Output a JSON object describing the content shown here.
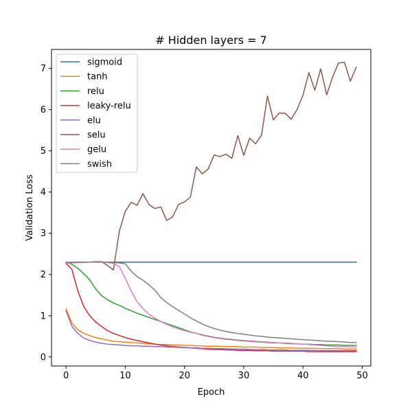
{
  "chart_data": {
    "type": "line",
    "title": "# Hidden layers = 7",
    "xlabel": "Epoch",
    "ylabel": "Validation Loss",
    "xlim": [
      -2.45,
      51.45
    ],
    "ylim": [
      -0.22,
      7.46
    ],
    "xticks": [
      0,
      10,
      20,
      30,
      40,
      50
    ],
    "yticks": [
      0,
      1,
      2,
      3,
      4,
      5,
      6,
      7
    ],
    "grid": false,
    "legend_position": "upper-left",
    "x": [
      0,
      1,
      2,
      3,
      4,
      5,
      6,
      7,
      8,
      9,
      10,
      11,
      12,
      13,
      14,
      15,
      16,
      17,
      18,
      19,
      20,
      21,
      22,
      23,
      24,
      25,
      26,
      27,
      28,
      29,
      30,
      31,
      32,
      33,
      34,
      35,
      36,
      37,
      38,
      39,
      40,
      41,
      42,
      43,
      44,
      45,
      46,
      47,
      48,
      49
    ],
    "series": [
      {
        "name": "sigmoid",
        "color": "#1f77b4",
        "values": [
          2.3,
          2.3,
          2.3,
          2.3,
          2.3,
          2.3,
          2.3,
          2.3,
          2.3,
          2.3,
          2.3,
          2.3,
          2.3,
          2.3,
          2.3,
          2.3,
          2.3,
          2.3,
          2.3,
          2.3,
          2.3,
          2.3,
          2.3,
          2.3,
          2.3,
          2.3,
          2.3,
          2.3,
          2.3,
          2.3,
          2.3,
          2.3,
          2.3,
          2.3,
          2.3,
          2.3,
          2.3,
          2.3,
          2.3,
          2.3,
          2.3,
          2.3,
          2.3,
          2.3,
          2.3,
          2.3,
          2.3,
          2.3,
          2.3,
          2.3
        ]
      },
      {
        "name": "tanh",
        "color": "#ff7f0e",
        "values": [
          1.17,
          0.82,
          0.66,
          0.57,
          0.52,
          0.47,
          0.44,
          0.41,
          0.38,
          0.37,
          0.36,
          0.35,
          0.34,
          0.33,
          0.32,
          0.31,
          0.3,
          0.3,
          0.29,
          0.29,
          0.28,
          0.28,
          0.27,
          0.27,
          0.26,
          0.26,
          0.26,
          0.25,
          0.25,
          0.25,
          0.24,
          0.24,
          0.24,
          0.23,
          0.23,
          0.23,
          0.22,
          0.22,
          0.22,
          0.21,
          0.21,
          0.21,
          0.21,
          0.2,
          0.2,
          0.2,
          0.2,
          0.19,
          0.19,
          0.19
        ]
      },
      {
        "name": "relu",
        "color": "#2ca02c",
        "values": [
          2.3,
          2.25,
          2.15,
          2.02,
          1.87,
          1.65,
          1.49,
          1.39,
          1.31,
          1.25,
          1.18,
          1.12,
          1.06,
          1.01,
          0.96,
          0.91,
          0.86,
          0.81,
          0.76,
          0.71,
          0.66,
          0.61,
          0.57,
          0.53,
          0.5,
          0.47,
          0.45,
          0.43,
          0.42,
          0.4,
          0.39,
          0.38,
          0.37,
          0.36,
          0.35,
          0.34,
          0.34,
          0.33,
          0.32,
          0.32,
          0.31,
          0.31,
          0.3,
          0.3,
          0.29,
          0.29,
          0.29,
          0.28,
          0.28,
          0.28
        ]
      },
      {
        "name": "leaky-relu",
        "color": "#d62728",
        "values": [
          2.27,
          2.12,
          1.6,
          1.22,
          1.0,
          0.85,
          0.74,
          0.64,
          0.57,
          0.52,
          0.47,
          0.43,
          0.4,
          0.37,
          0.34,
          0.31,
          0.29,
          0.27,
          0.25,
          0.24,
          0.23,
          0.22,
          0.21,
          0.2,
          0.19,
          0.18,
          0.18,
          0.17,
          0.17,
          0.16,
          0.16,
          0.16,
          0.15,
          0.15,
          0.15,
          0.14,
          0.14,
          0.14,
          0.14,
          0.14,
          0.14,
          0.13,
          0.13,
          0.13,
          0.13,
          0.13,
          0.13,
          0.13,
          0.13,
          0.13
        ]
      },
      {
        "name": "elu",
        "color": "#9467bd",
        "values": [
          1.12,
          0.74,
          0.57,
          0.46,
          0.4,
          0.36,
          0.33,
          0.31,
          0.3,
          0.29,
          0.28,
          0.27,
          0.27,
          0.26,
          0.26,
          0.25,
          0.25,
          0.24,
          0.24,
          0.23,
          0.23,
          0.22,
          0.22,
          0.21,
          0.21,
          0.2,
          0.2,
          0.2,
          0.19,
          0.19,
          0.19,
          0.18,
          0.18,
          0.18,
          0.17,
          0.17,
          0.17,
          0.17,
          0.16,
          0.16,
          0.16,
          0.16,
          0.16,
          0.15,
          0.15,
          0.15,
          0.15,
          0.15,
          0.15,
          0.15
        ]
      },
      {
        "name": "selu",
        "color": "#8c564b",
        "values": [
          2.27,
          2.29,
          2.29,
          2.3,
          2.3,
          2.31,
          2.31,
          2.22,
          2.11,
          3.05,
          3.53,
          3.75,
          3.68,
          3.96,
          3.7,
          3.6,
          3.64,
          3.31,
          3.4,
          3.7,
          3.76,
          3.88,
          4.61,
          4.44,
          4.56,
          4.9,
          4.86,
          4.92,
          4.82,
          5.37,
          4.89,
          5.31,
          5.17,
          5.38,
          6.33,
          5.75,
          5.92,
          5.91,
          5.77,
          6.0,
          6.35,
          6.9,
          6.47,
          6.99,
          6.36,
          6.79,
          7.13,
          7.15,
          6.69,
          7.03
        ]
      },
      {
        "name": "gelu",
        "color": "#e377c2",
        "values": [
          2.27,
          2.28,
          2.29,
          2.29,
          2.3,
          2.3,
          2.3,
          2.29,
          2.27,
          2.19,
          1.91,
          1.6,
          1.34,
          1.17,
          1.04,
          0.94,
          0.86,
          0.79,
          0.73,
          0.68,
          0.64,
          0.6,
          0.57,
          0.54,
          0.51,
          0.48,
          0.46,
          0.44,
          0.43,
          0.41,
          0.4,
          0.39,
          0.38,
          0.37,
          0.36,
          0.35,
          0.34,
          0.34,
          0.33,
          0.32,
          0.31,
          0.3,
          0.29,
          0.28,
          0.27,
          0.26,
          0.25,
          0.25,
          0.24,
          0.24
        ]
      },
      {
        "name": "swish",
        "color": "#7f7f7f",
        "values": [
          2.3,
          2.3,
          2.3,
          2.3,
          2.3,
          2.3,
          2.3,
          2.3,
          2.29,
          2.28,
          2.26,
          2.08,
          1.95,
          1.86,
          1.75,
          1.62,
          1.44,
          1.32,
          1.22,
          1.13,
          1.04,
          0.95,
          0.87,
          0.8,
          0.74,
          0.69,
          0.65,
          0.62,
          0.59,
          0.57,
          0.55,
          0.53,
          0.51,
          0.5,
          0.48,
          0.47,
          0.46,
          0.45,
          0.44,
          0.43,
          0.42,
          0.41,
          0.4,
          0.39,
          0.38,
          0.38,
          0.37,
          0.36,
          0.35,
          0.35
        ]
      }
    ]
  }
}
